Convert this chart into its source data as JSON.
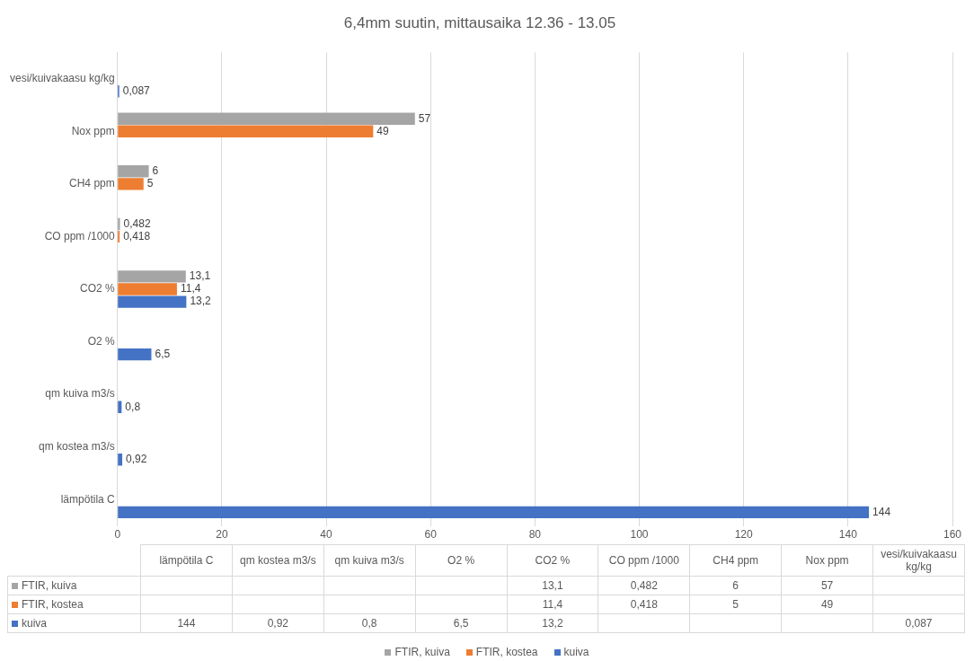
{
  "chart_data": {
    "type": "bar",
    "orientation": "horizontal",
    "title": "6,4mm suutin, mittausaika 12.36 - 13.05",
    "categories": [
      "vesi/kuivakaasu kg/kg",
      "Nox ppm",
      "CH4 ppm",
      "CO ppm /1000",
      "CO2 %",
      "O2 %",
      "qm kuiva m3/s",
      "qm kostea m3/s",
      "lämpötila C"
    ],
    "series": [
      {
        "name": "FTIR, kuiva",
        "color": "#a5a5a5",
        "values": [
          null,
          57,
          6,
          0.482,
          13.1,
          null,
          null,
          null,
          null
        ],
        "value_labels": [
          null,
          "57",
          "6",
          "0,482",
          "13,1",
          null,
          null,
          null,
          null
        ]
      },
      {
        "name": "FTIR, kostea",
        "color": "#ed7d31",
        "values": [
          null,
          49,
          5,
          0.418,
          11.4,
          null,
          null,
          null,
          null
        ],
        "value_labels": [
          null,
          "49",
          "5",
          "0,418",
          "11,4",
          null,
          null,
          null,
          null
        ]
      },
      {
        "name": "kuiva",
        "color": "#4472c4",
        "values": [
          0.087,
          null,
          null,
          null,
          13.2,
          6.5,
          0.8,
          0.92,
          144
        ],
        "value_labels": [
          "0,087",
          null,
          null,
          null,
          "13,2",
          "6,5",
          "0,8",
          "0,92",
          "144"
        ]
      }
    ],
    "xlim": [
      0,
      160
    ],
    "xticks": [
      0,
      20,
      40,
      60,
      80,
      100,
      120,
      140,
      160
    ],
    "grid": "x",
    "legend": "bottom"
  }
}
